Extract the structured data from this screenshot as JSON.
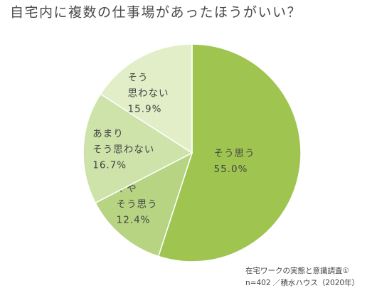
{
  "chart_data": {
    "type": "pie",
    "title": "自宅内に複数の仕事場があったほうがいい？",
    "categories": [
      [
        "そう思う"
      ],
      [
        "やや",
        "そう思う"
      ],
      [
        "あまり",
        "そう思わない"
      ],
      [
        "そう",
        "思わない"
      ]
    ],
    "values": [
      55.0,
      12.4,
      16.7,
      15.9
    ],
    "value_labels": [
      "55.0%",
      "12.4%",
      "16.7%",
      "15.9%"
    ],
    "colors": [
      "#9fc550",
      "#b6d482",
      "#cde3a9",
      "#e1eec8"
    ],
    "notes": [
      "在宅ワークの実態と意識調査①",
      "n=402 ／積水ハウス（2020年）"
    ]
  }
}
